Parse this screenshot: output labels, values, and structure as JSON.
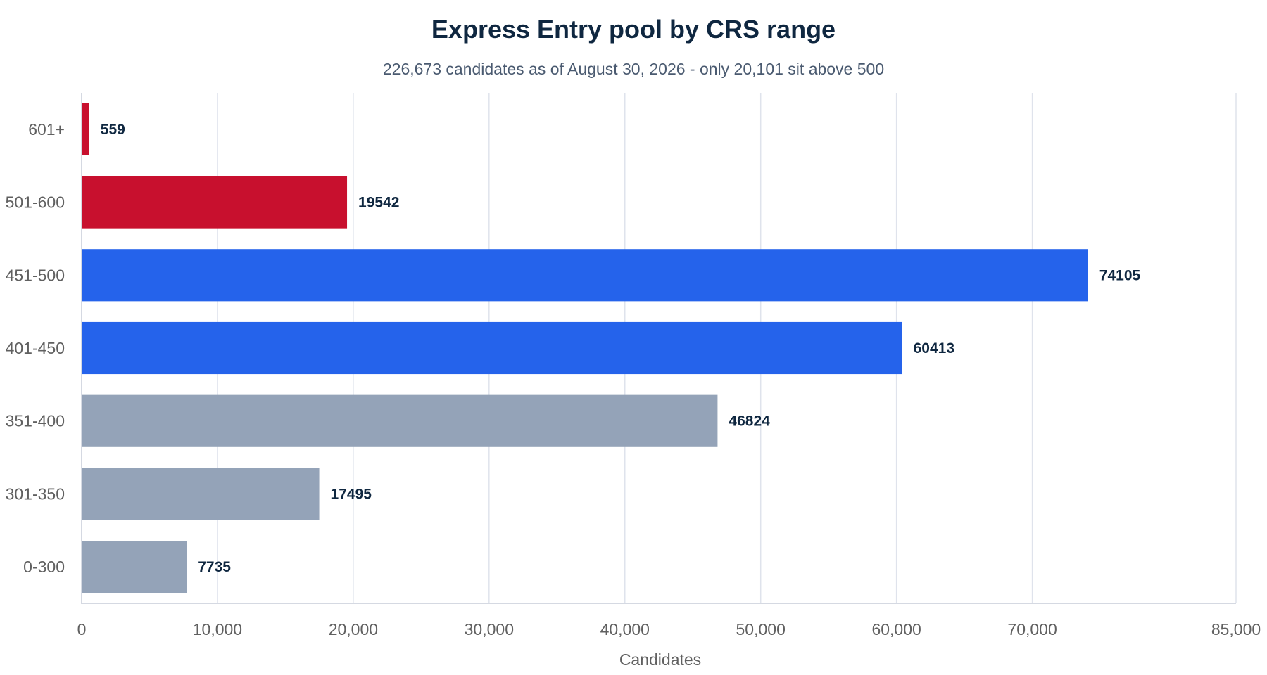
{
  "chart_data": {
    "type": "bar",
    "orientation": "horizontal",
    "title": "Express Entry pool by CRS range",
    "subtitle": "226,673 candidates as of August 30, 2026 - only 20,101 sit above 500",
    "xlabel": "Candidates",
    "ylabel": "",
    "xlim": [
      0,
      85000
    ],
    "x_ticks": [
      0,
      10000,
      20000,
      30000,
      40000,
      50000,
      60000,
      70000,
      85000
    ],
    "x_tick_labels": [
      "0",
      "10,000",
      "20,000",
      "30,000",
      "40,000",
      "50,000",
      "60,000",
      "70,000",
      "85,000"
    ],
    "grid": "vertical",
    "legend": "none",
    "categories": [
      "601+",
      "501-600",
      "451-500",
      "401-450",
      "351-400",
      "301-350",
      "0-300"
    ],
    "values": [
      559,
      19542,
      74105,
      60413,
      46824,
      17495,
      7735
    ],
    "value_labels": [
      "559",
      "19542",
      "74105",
      "60413",
      "46824",
      "17495",
      "7735"
    ],
    "bar_colors": [
      "#c8102e",
      "#c8102e",
      "#2563eb",
      "#2563eb",
      "#94a3b8",
      "#94a3b8",
      "#94a3b8"
    ]
  },
  "colors": {
    "title": "#0f2740",
    "subtitle": "#4a5a70",
    "axis_text": "#606060",
    "value_text": "#0f2740",
    "grid": "#dfe3ec",
    "axis_line": "#d5d9e2"
  }
}
